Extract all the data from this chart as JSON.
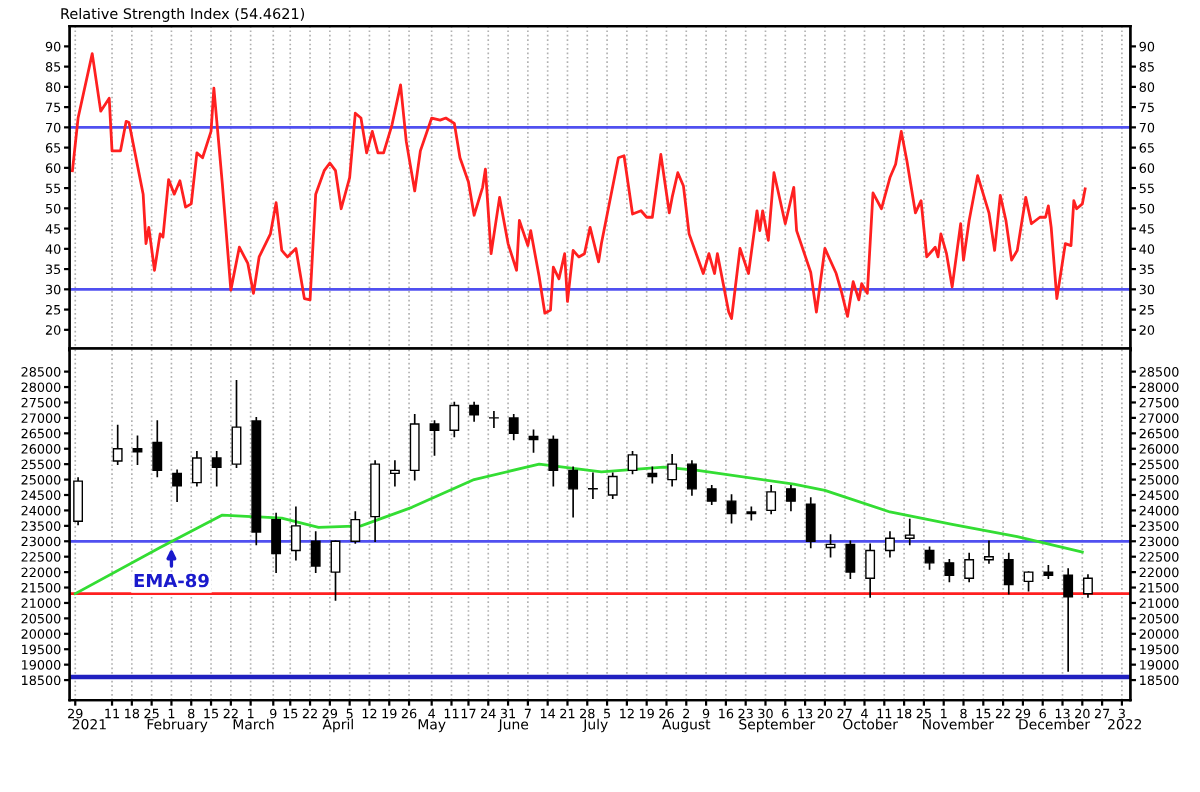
{
  "chart_data": [
    {
      "type": "line",
      "title": "Relative Strength Index (54.4621)",
      "xlim": [
        "2020-12-27",
        "2022-01-06"
      ],
      "ylim": [
        15,
        95
      ],
      "yticks": [
        20,
        25,
        30,
        35,
        40,
        45,
        50,
        55,
        60,
        65,
        70,
        75,
        80,
        85,
        90
      ],
      "y2lim": [
        15,
        95
      ],
      "y2ticks": [
        20,
        25,
        30,
        35,
        40,
        45,
        50,
        55,
        60,
        65,
        70,
        75,
        80,
        85,
        90
      ],
      "tick_labels": "y",
      "grid": "x",
      "xticks": [
        {
          "value": "2020-12-29",
          "label": null
        },
        {
          "value": "2021-01-11",
          "label": null
        },
        {
          "value": "2021-01-18",
          "label": null
        },
        {
          "value": "2021-01-25",
          "label": null
        },
        {
          "value": "2021-02-01",
          "label": null
        },
        {
          "value": "2021-02-08",
          "label": null
        },
        {
          "value": "2021-02-15",
          "label": null
        },
        {
          "value": "2021-02-22",
          "label": null
        },
        {
          "value": "2021-03-01",
          "label": null
        },
        {
          "value": "2021-03-09",
          "label": null
        },
        {
          "value": "2021-03-15",
          "label": null
        },
        {
          "value": "2021-03-22",
          "label": null
        },
        {
          "value": "2021-03-29",
          "label": null
        },
        {
          "value": "2021-04-05",
          "label": null
        },
        {
          "value": "2021-04-12",
          "label": null
        },
        {
          "value": "2021-04-19",
          "label": null
        },
        {
          "value": "2021-04-26",
          "label": null
        },
        {
          "value": "2021-05-04",
          "label": null
        },
        {
          "value": "2021-05-11",
          "label": null
        },
        {
          "value": "2021-05-17",
          "label": null
        },
        {
          "value": "2021-05-24",
          "label": null
        },
        {
          "value": "2021-05-31",
          "label": null
        },
        {
          "value": "2021-06-07",
          "label": null
        },
        {
          "value": "2021-06-14",
          "label": null
        },
        {
          "value": "2021-06-21",
          "label": null
        },
        {
          "value": "2021-06-28",
          "label": null
        },
        {
          "value": "2021-07-05",
          "label": null
        },
        {
          "value": "2021-07-12",
          "label": null
        },
        {
          "value": "2021-07-19",
          "label": null
        },
        {
          "value": "2021-07-26",
          "label": null
        },
        {
          "value": "2021-08-02",
          "label": null
        },
        {
          "value": "2021-08-09",
          "label": null
        },
        {
          "value": "2021-08-16",
          "label": null
        },
        {
          "value": "2021-08-23",
          "label": null
        },
        {
          "value": "2021-08-30",
          "label": null
        },
        {
          "value": "2021-09-06",
          "label": null
        },
        {
          "value": "2021-09-13",
          "label": null
        },
        {
          "value": "2021-09-20",
          "label": null
        },
        {
          "value": "2021-09-27",
          "label": null
        },
        {
          "value": "2021-10-04",
          "label": null
        },
        {
          "value": "2021-10-11",
          "label": null
        },
        {
          "value": "2021-10-18",
          "label": null
        },
        {
          "value": "2021-10-25",
          "label": null
        },
        {
          "value": "2021-11-01",
          "label": null
        },
        {
          "value": "2021-11-08",
          "label": null
        },
        {
          "value": "2021-11-15",
          "label": null
        },
        {
          "value": "2021-11-22",
          "label": null
        },
        {
          "value": "2021-11-29",
          "label": null
        },
        {
          "value": "2021-12-06",
          "label": null
        },
        {
          "value": "2021-12-13",
          "label": null
        },
        {
          "value": "2021-12-20",
          "label": null
        },
        {
          "value": "2021-12-27",
          "label": null
        },
        {
          "value": "2022-01-03",
          "label": null
        }
      ],
      "ref_lines": [
        {
          "axis": "y",
          "value": 70,
          "color": "#5050f0"
        },
        {
          "axis": "y",
          "value": 30,
          "color": "#5050f0"
        }
      ],
      "series": [
        {
          "type": "line",
          "color": "#ff2020",
          "x": [
            "2020-12-28",
            "2020-12-30",
            "2021-01-04",
            "2021-01-07",
            "2021-01-10",
            "2021-01-11",
            "2021-01-14",
            "2021-01-16",
            "2021-01-17",
            "2021-01-22",
            "2021-01-23",
            "2021-01-24",
            "2021-01-26",
            "2021-01-28",
            "2021-01-29",
            "2021-01-31",
            "2021-02-02",
            "2021-02-04",
            "2021-02-06",
            "2021-02-08",
            "2021-02-10",
            "2021-02-12",
            "2021-02-15",
            "2021-02-16",
            "2021-02-19",
            "2021-02-22",
            "2021-02-25",
            "2021-02-28",
            "2021-03-02",
            "2021-03-04",
            "2021-03-08",
            "2021-03-10",
            "2021-03-12",
            "2021-03-14",
            "2021-03-17",
            "2021-03-20",
            "2021-03-22",
            "2021-03-24",
            "2021-03-27",
            "2021-03-29",
            "2021-03-31",
            "2021-04-02",
            "2021-04-05",
            "2021-04-07",
            "2021-04-09",
            "2021-04-11",
            "2021-04-13",
            "2021-04-15",
            "2021-04-17",
            "2021-04-20",
            "2021-04-23",
            "2021-04-25",
            "2021-04-28",
            "2021-04-30",
            "2021-05-04",
            "2021-05-07",
            "2021-05-09",
            "2021-05-12",
            "2021-05-14",
            "2021-05-17",
            "2021-05-19",
            "2021-05-22",
            "2021-05-23",
            "2021-05-25",
            "2021-05-28",
            "2021-05-31",
            "2021-06-03",
            "2021-06-04",
            "2021-06-07",
            "2021-06-08",
            "2021-06-11",
            "2021-06-13",
            "2021-06-15",
            "2021-06-16",
            "2021-06-18",
            "2021-06-20",
            "2021-06-21",
            "2021-06-23",
            "2021-06-25",
            "2021-06-27",
            "2021-06-29",
            "2021-07-02",
            "2021-07-03",
            "2021-07-09",
            "2021-07-11",
            "2021-07-14",
            "2021-07-17",
            "2021-07-19",
            "2021-07-21",
            "2021-07-24",
            "2021-07-27",
            "2021-07-28",
            "2021-07-30",
            "2021-08-01",
            "2021-08-03",
            "2021-08-08",
            "2021-08-10",
            "2021-08-12",
            "2021-08-13",
            "2021-08-17",
            "2021-08-18",
            "2021-08-21",
            "2021-08-24",
            "2021-08-27",
            "2021-08-28",
            "2021-08-29",
            "2021-08-31",
            "2021-09-02",
            "2021-09-06",
            "2021-09-09",
            "2021-09-10",
            "2021-09-15",
            "2021-09-17",
            "2021-09-20",
            "2021-09-24",
            "2021-09-26",
            "2021-09-28",
            "2021-09-30",
            "2021-10-02",
            "2021-10-03",
            "2021-10-05",
            "2021-10-07",
            "2021-10-10",
            "2021-10-13",
            "2021-10-15",
            "2021-10-17",
            "2021-10-19",
            "2021-10-22",
            "2021-10-24",
            "2021-10-26",
            "2021-10-29",
            "2021-10-30",
            "2021-10-31",
            "2021-11-02",
            "2021-11-04",
            "2021-11-07",
            "2021-11-08",
            "2021-11-10",
            "2021-11-13",
            "2021-11-17",
            "2021-11-19",
            "2021-11-21",
            "2021-11-23",
            "2021-11-25",
            "2021-11-27",
            "2021-11-30",
            "2021-12-02",
            "2021-12-05",
            "2021-12-07",
            "2021-12-08",
            "2021-12-09",
            "2021-12-11",
            "2021-12-14",
            "2021-12-16",
            "2021-12-17",
            "2021-12-18",
            "2021-12-20",
            "2021-12-21"
          ],
          "values": [
            59.3,
            72.3,
            88.2,
            74,
            77.2,
            64.2,
            64.2,
            71.5,
            71.2,
            53.5,
            41.3,
            45.3,
            34.7,
            43.7,
            42.9,
            57.1,
            53.5,
            56.8,
            50.3,
            51.1,
            63.7,
            62.5,
            69,
            79.7,
            56,
            29.8,
            40.4,
            36.4,
            29,
            38,
            43.7,
            51.4,
            39.6,
            38,
            40.1,
            27.7,
            27.4,
            53.5,
            59.3,
            61.2,
            59.3,
            49.9,
            57.6,
            73.5,
            72.3,
            63.7,
            69,
            63.7,
            63.7,
            70.7,
            80.5,
            66.6,
            54.3,
            64.2,
            72.3,
            71.8,
            72.3,
            71,
            62.5,
            56.5,
            48.3,
            55.2,
            59.7,
            38.8,
            52.7,
            41.3,
            34.7,
            47,
            40.8,
            44.5,
            33.1,
            24.1,
            24.9,
            35.5,
            32.6,
            38.8,
            27,
            39.6,
            38,
            38.8,
            45.3,
            36.8,
            41.3,
            62.5,
            63,
            48.6,
            49.4,
            47.8,
            47.8,
            63.3,
            48.9,
            52.7,
            58.8,
            55.5,
            43.7,
            33.9,
            38.8,
            33.9,
            38.8,
            24.4,
            22.8,
            40.1,
            33.9,
            49.4,
            44.5,
            49.4,
            42.1,
            58.8,
            46.2,
            55.2,
            44.5,
            34.2,
            24.4,
            40.1,
            33.9,
            29,
            23.3,
            31.9,
            27.4,
            31.4,
            29,
            53.8,
            49.9,
            57.6,
            60.9,
            69,
            61.7,
            48.9,
            51.9,
            38,
            40.4,
            38,
            43.7,
            38.8,
            30.6,
            46.2,
            37.2,
            47,
            58.1,
            48.9,
            39.6,
            53.2,
            47,
            37.2,
            39.6,
            52.7,
            46.2,
            47.8,
            47.8,
            50.6,
            45.3,
            27.7,
            41.3,
            40.8,
            51.9,
            49.9,
            51.1,
            54.8
          ]
        }
      ]
    },
    {
      "type": "candlestick",
      "xlim": [
        "2020-12-27",
        "2022-01-06"
      ],
      "ylim": [
        17850,
        29250
      ],
      "yticks": [
        18500,
        19000,
        19500,
        20000,
        20500,
        21000,
        21500,
        22000,
        22500,
        23000,
        23500,
        24000,
        24500,
        25000,
        25500,
        26000,
        26500,
        27000,
        27500,
        28000,
        28500
      ],
      "y2lim": [
        17850,
        29250
      ],
      "y2ticks": [
        18500,
        19000,
        19500,
        20000,
        20500,
        21000,
        21500,
        22000,
        22500,
        23000,
        23500,
        24000,
        24500,
        25000,
        25500,
        26000,
        26500,
        27000,
        27500,
        28000,
        28500
      ],
      "grid": "x",
      "xticks": [
        {
          "value": "2020-12-29",
          "label": "29"
        },
        {
          "value": "2021-01-11",
          "label": "11"
        },
        {
          "value": "2021-01-18",
          "label": "18"
        },
        {
          "value": "2021-01-25",
          "label": "25"
        },
        {
          "value": "2021-02-01",
          "label": "1"
        },
        {
          "value": "2021-02-08",
          "label": "8"
        },
        {
          "value": "2021-02-15",
          "label": "15"
        },
        {
          "value": "2021-02-22",
          "label": "22"
        },
        {
          "value": "2021-03-01",
          "label": "1"
        },
        {
          "value": "2021-03-09",
          "label": "9"
        },
        {
          "value": "2021-03-15",
          "label": "15"
        },
        {
          "value": "2021-03-22",
          "label": "22"
        },
        {
          "value": "2021-03-29",
          "label": "29"
        },
        {
          "value": "2021-04-05",
          "label": "5"
        },
        {
          "value": "2021-04-12",
          "label": "12"
        },
        {
          "value": "2021-04-19",
          "label": "19"
        },
        {
          "value": "2021-04-26",
          "label": "26"
        },
        {
          "value": "2021-05-04",
          "label": "4"
        },
        {
          "value": "2021-05-11",
          "label": "11"
        },
        {
          "value": "2021-05-17",
          "label": "17"
        },
        {
          "value": "2021-05-24",
          "label": "24"
        },
        {
          "value": "2021-05-31",
          "label": "31"
        },
        {
          "value": "2021-06-07",
          "label": "7"
        },
        {
          "value": "2021-06-14",
          "label": "14"
        },
        {
          "value": "2021-06-21",
          "label": "21"
        },
        {
          "value": "2021-06-28",
          "label": "28"
        },
        {
          "value": "2021-07-05",
          "label": "5"
        },
        {
          "value": "2021-07-12",
          "label": "12"
        },
        {
          "value": "2021-07-19",
          "label": "19"
        },
        {
          "value": "2021-07-26",
          "label": "26"
        },
        {
          "value": "2021-08-02",
          "label": "2"
        },
        {
          "value": "2021-08-09",
          "label": "9"
        },
        {
          "value": "2021-08-16",
          "label": "16"
        },
        {
          "value": "2021-08-23",
          "label": "23"
        },
        {
          "value": "2021-08-30",
          "label": "30"
        },
        {
          "value": "2021-09-06",
          "label": "6"
        },
        {
          "value": "2021-09-13",
          "label": "13"
        },
        {
          "value": "2021-09-20",
          "label": "20"
        },
        {
          "value": "2021-09-27",
          "label": "27"
        },
        {
          "value": "2021-10-04",
          "label": "4"
        },
        {
          "value": "2021-10-11",
          "label": "11"
        },
        {
          "value": "2021-10-18",
          "label": "18"
        },
        {
          "value": "2021-10-25",
          "label": "25"
        },
        {
          "value": "2021-11-01",
          "label": "1"
        },
        {
          "value": "2021-11-08",
          "label": "8"
        },
        {
          "value": "2021-11-15",
          "label": "15"
        },
        {
          "value": "2021-11-22",
          "label": "22"
        },
        {
          "value": "2021-11-29",
          "label": "29"
        },
        {
          "value": "2021-12-06",
          "label": "6"
        },
        {
          "value": "2021-12-13",
          "label": "13"
        },
        {
          "value": "2021-12-20",
          "label": "20"
        },
        {
          "value": "2021-12-27",
          "label": "27"
        },
        {
          "value": "2022-01-03",
          "label": "3"
        }
      ],
      "x2lim": [
        "2020-12-27",
        "2022-01-06"
      ],
      "x2ticks": [
        {
          "value": "2021-01-03",
          "label": "2021"
        },
        {
          "value": "2021-02-03",
          "label": "February"
        },
        {
          "value": "2021-03-02",
          "label": "March"
        },
        {
          "value": "2021-04-01",
          "label": "April"
        },
        {
          "value": "2021-05-04",
          "label": "May"
        },
        {
          "value": "2021-06-02",
          "label": "June"
        },
        {
          "value": "2021-07-01",
          "label": "July"
        },
        {
          "value": "2021-08-02",
          "label": "August"
        },
        {
          "value": "2021-09-03",
          "label": "September"
        },
        {
          "value": "2021-10-06",
          "label": "October"
        },
        {
          "value": "2021-11-06",
          "label": "November"
        },
        {
          "value": "2021-12-10",
          "label": "December"
        },
        {
          "value": "2022-01-04",
          "label": "2022"
        }
      ],
      "ref_lines": [
        {
          "axis": "y",
          "value": 23000,
          "color": "#5050f0"
        },
        {
          "axis": "y",
          "value": 21300,
          "color": "#ff2020"
        },
        {
          "axis": "y",
          "value": 18600,
          "color": "#2020c0"
        }
      ],
      "annotations": [
        {
          "text": "EMA-89",
          "x": "2021-02-01",
          "y": 22950
        }
      ],
      "x": [
        "2020-12-30",
        "2021-01-13",
        "2021-01-20",
        "2021-01-27",
        "2021-02-03",
        "2021-02-10",
        "2021-02-17",
        "2021-02-24",
        "2021-03-03",
        "2021-03-10",
        "2021-03-17",
        "2021-03-24",
        "2021-03-31",
        "2021-04-07",
        "2021-04-14",
        "2021-04-21",
        "2021-04-28",
        "2021-05-05",
        "2021-05-12",
        "2021-05-19",
        "2021-05-26",
        "2021-06-02",
        "2021-06-09",
        "2021-06-16",
        "2021-06-23",
        "2021-06-30",
        "2021-07-07",
        "2021-07-14",
        "2021-07-21",
        "2021-07-28",
        "2021-08-04",
        "2021-08-11",
        "2021-08-18",
        "2021-08-25",
        "2021-09-01",
        "2021-09-08",
        "2021-09-15",
        "2021-09-22",
        "2021-09-29",
        "2021-10-06",
        "2021-10-13",
        "2021-10-20",
        "2021-10-27",
        "2021-11-03",
        "2021-11-10",
        "2021-11-17",
        "2021-11-24",
        "2021-12-01",
        "2021-12-08",
        "2021-12-15",
        "2021-12-22"
      ],
      "ohlc": [
        [
          23650,
          25050,
          23550,
          24950
        ],
        [
          25600,
          26750,
          25500,
          26000
        ],
        [
          26000,
          26400,
          25500,
          25900
        ],
        [
          26200,
          26900,
          25100,
          25300
        ],
        [
          25200,
          25300,
          24300,
          24800
        ],
        [
          24900,
          25900,
          24800,
          25700
        ],
        [
          25700,
          25900,
          24800,
          25400
        ],
        [
          25500,
          28200,
          25400,
          26700
        ],
        [
          26900,
          27000,
          22900,
          23300
        ],
        [
          23700,
          23900,
          22000,
          22600
        ],
        [
          22700,
          24100,
          22400,
          23500
        ],
        [
          23000,
          23300,
          22000,
          22200
        ],
        [
          22000,
          23000,
          21100,
          23000
        ],
        [
          23000,
          23950,
          22950,
          23700
        ],
        [
          23800,
          25600,
          23000,
          25500
        ],
        [
          25200,
          25600,
          24800,
          25300
        ],
        [
          25300,
          27100,
          25000,
          26800
        ],
        [
          26800,
          26900,
          25800,
          26600
        ],
        [
          26600,
          27500,
          26400,
          27400
        ],
        [
          27400,
          27500,
          26900,
          27100
        ],
        [
          27000,
          27200,
          26700,
          27000
        ],
        [
          27000,
          27100,
          26300,
          26500
        ],
        [
          26400,
          26600,
          25900,
          26300
        ],
        [
          26300,
          26400,
          24800,
          25300
        ],
        [
          25300,
          25400,
          23800,
          24700
        ],
        [
          24700,
          25200,
          24400,
          24700
        ],
        [
          24500,
          25200,
          24400,
          25100
        ],
        [
          25300,
          25900,
          25200,
          25800
        ],
        [
          25200,
          25400,
          24900,
          25100
        ],
        [
          25000,
          25800,
          24800,
          25500
        ],
        [
          25500,
          25600,
          24500,
          24700
        ],
        [
          24700,
          24800,
          24200,
          24300
        ],
        [
          24300,
          24500,
          23600,
          23900
        ],
        [
          23900,
          24100,
          23700,
          23950
        ],
        [
          24000,
          24800,
          23900,
          24600
        ],
        [
          24700,
          24800,
          24000,
          24300
        ],
        [
          24200,
          24400,
          22800,
          23000
        ],
        [
          22800,
          23200,
          22500,
          22900
        ],
        [
          22900,
          23000,
          21800,
          22000
        ],
        [
          21800,
          22900,
          21200,
          22700
        ],
        [
          22700,
          23300,
          22500,
          23100
        ],
        [
          23100,
          23700,
          22900,
          23200
        ],
        [
          22700,
          22800,
          22100,
          22300
        ],
        [
          22300,
          22400,
          21700,
          21900
        ],
        [
          21800,
          22600,
          21700,
          22400
        ],
        [
          22400,
          23000,
          22300,
          22500
        ],
        [
          22400,
          22600,
          21300,
          21600
        ],
        [
          21700,
          22000,
          21400,
          22000
        ],
        [
          22000,
          22200,
          21800,
          21900
        ],
        [
          21900,
          22100,
          18800,
          21200
        ],
        [
          21300,
          21900,
          21200,
          21800
        ]
      ],
      "series": [
        {
          "type": "line",
          "color": "#33dd33",
          "x": [
            "2020-12-29",
            "2021-01-28",
            "2021-02-19",
            "2021-03-12",
            "2021-03-25",
            "2021-04-09",
            "2021-04-27",
            "2021-05-19",
            "2021-06-11",
            "2021-07-03",
            "2021-07-25",
            "2021-08-06",
            "2021-09-09",
            "2021-09-20",
            "2021-10-13",
            "2021-11-04",
            "2021-11-27",
            "2021-12-20"
          ],
          "values": [
            21300,
            22800,
            23850,
            23750,
            23450,
            23500,
            24100,
            25000,
            25500,
            25250,
            25400,
            25300,
            24850,
            24650,
            23950,
            23550,
            23150,
            22650
          ]
        }
      ]
    }
  ]
}
